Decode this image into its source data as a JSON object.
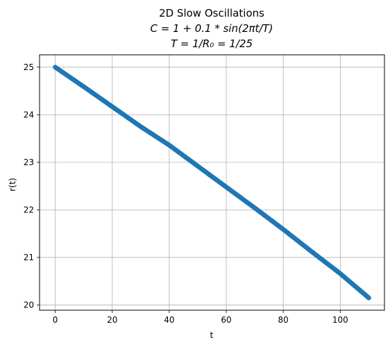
{
  "chart_data": {
    "type": "scatter",
    "title": "2D Slow Oscillations",
    "subtitle_line1": "C = 1 + 0.1 * sin(2πt/T)",
    "subtitle_line2": "T = 1/R₀ = 1/25",
    "xlabel": "t",
    "ylabel": "r(t)",
    "xlim": [
      -5.5,
      115.5
    ],
    "ylim": [
      19.89,
      25.26
    ],
    "xticks": [
      0,
      20,
      40,
      60,
      80,
      100
    ],
    "yticks": [
      20,
      21,
      22,
      23,
      24,
      25
    ],
    "grid": true,
    "series": [
      {
        "color": "#1f77b4",
        "x": [
          0,
          10,
          20,
          30,
          40,
          50,
          60,
          70,
          80,
          90,
          100,
          110
        ],
        "values": [
          25.0,
          24.59,
          24.17,
          23.75,
          23.36,
          22.92,
          22.48,
          22.04,
          21.59,
          21.12,
          20.66,
          20.15
        ]
      }
    ]
  }
}
